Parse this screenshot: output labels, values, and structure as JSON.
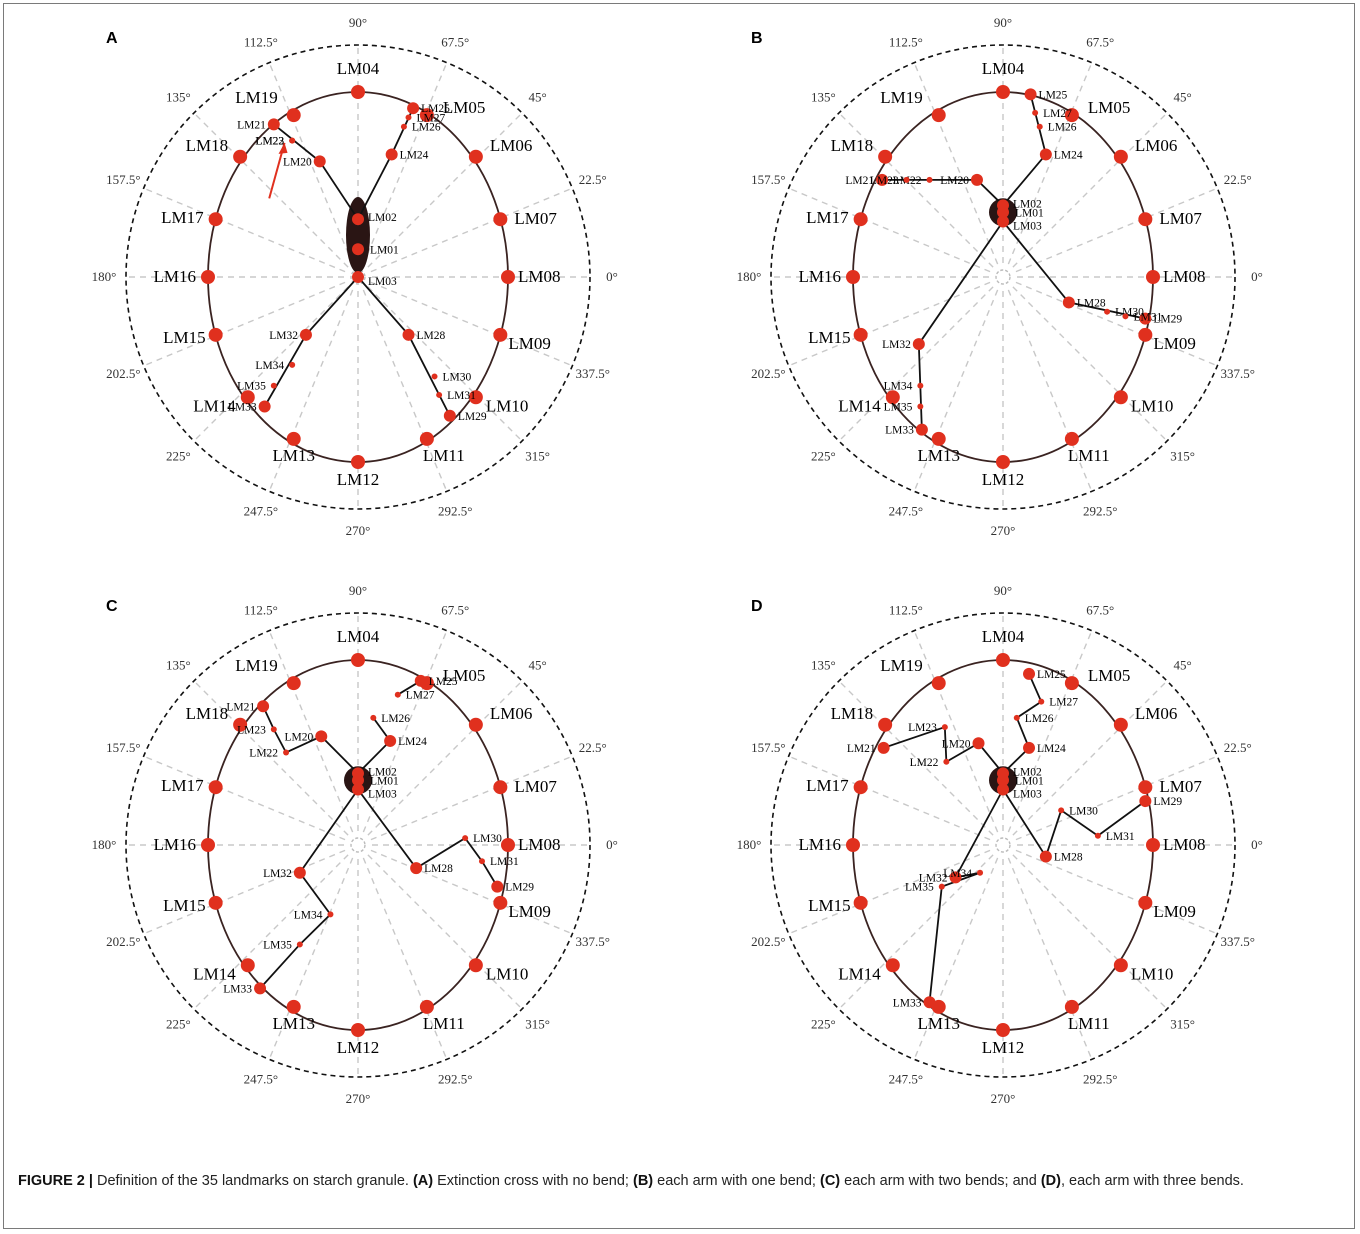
{
  "angle_labels": [
    "0°",
    "22.5°",
    "45°",
    "67.5°",
    "90°",
    "112.5°",
    "135°",
    "157.5°",
    "180°",
    "202.5°",
    "225°",
    "247.5°",
    "270°",
    "292.5°",
    "315°",
    "337.5°"
  ],
  "panels": [
    {
      "letter": "A",
      "lm": {
        "LM01": [
          0,
          0.12
        ],
        "LM02": [
          0,
          0.25
        ],
        "LM03": [
          0,
          0.0
        ],
        "LM04": [
          0,
          0.8
        ],
        "LM05": [
          0.45,
          0.7
        ],
        "LM06": [
          0.77,
          0.52
        ],
        "LM07": [
          0.93,
          0.25
        ],
        "LM08": [
          0.98,
          0.0
        ],
        "LM09": [
          0.93,
          -0.25
        ],
        "LM10": [
          0.77,
          -0.52
        ],
        "LM11": [
          0.45,
          -0.7
        ],
        "LM12": [
          0,
          -0.8
        ],
        "LM13": [
          -0.42,
          -0.7
        ],
        "LM14": [
          -0.72,
          -0.52
        ],
        "LM15": [
          -0.93,
          -0.25
        ],
        "LM16": [
          -0.98,
          0.0
        ],
        "LM17": [
          -0.93,
          0.25
        ],
        "LM18": [
          -0.77,
          0.52
        ],
        "LM19": [
          -0.42,
          0.7
        ],
        "LM20": [
          -0.25,
          0.5
        ],
        "LM21": [
          -0.55,
          0.66
        ],
        "LM22": [
          -0.43,
          0.59
        ],
        "LM23": [
          -0.43,
          0.59
        ],
        "LM24": [
          0.22,
          0.53
        ],
        "LM25": [
          0.36,
          0.73
        ],
        "LM26": [
          0.3,
          0.65
        ],
        "LM27": [
          0.33,
          0.69
        ],
        "LM28": [
          0.33,
          -0.25
        ],
        "LM29": [
          0.6,
          -0.6
        ],
        "LM30": [
          0.5,
          -0.43
        ],
        "LM31": [
          0.53,
          -0.51
        ],
        "LM32": [
          -0.34,
          -0.25
        ],
        "LM33": [
          -0.61,
          -0.56
        ],
        "LM34": [
          -0.43,
          -0.38
        ],
        "LM35": [
          -0.55,
          -0.47
        ]
      },
      "big_lm": [
        "LM04",
        "LM05",
        "LM06",
        "LM07",
        "LM08",
        "LM09",
        "LM10",
        "LM11",
        "LM12",
        "LM13",
        "LM14",
        "LM15",
        "LM16",
        "LM17",
        "LM18",
        "LM19"
      ],
      "paths": [
        [
          "LM02",
          "LM24",
          "LM25"
        ],
        [
          "LM02",
          "LM20",
          "LM21"
        ],
        [
          "LM03",
          "LM32",
          "LM33"
        ],
        [
          "LM03",
          "LM28",
          "LM29"
        ]
      ],
      "red_arrow": true,
      "center_ellipse": true
    },
    {
      "letter": "B",
      "lm": {
        "LM01": [
          0,
          0.28
        ],
        "LM02": [
          0,
          0.31
        ],
        "LM03": [
          0,
          0.24
        ],
        "LM04": [
          0,
          0.8
        ],
        "LM05": [
          0.45,
          0.7
        ],
        "LM06": [
          0.77,
          0.52
        ],
        "LM07": [
          0.93,
          0.25
        ],
        "LM08": [
          0.98,
          0.0
        ],
        "LM09": [
          0.93,
          -0.25
        ],
        "LM10": [
          0.77,
          -0.52
        ],
        "LM11": [
          0.45,
          -0.7
        ],
        "LM12": [
          0,
          -0.8
        ],
        "LM13": [
          -0.42,
          -0.7
        ],
        "LM14": [
          -0.72,
          -0.52
        ],
        "LM15": [
          -0.93,
          -0.25
        ],
        "LM16": [
          -0.98,
          0.0
        ],
        "LM17": [
          -0.93,
          0.25
        ],
        "LM18": [
          -0.77,
          0.52
        ],
        "LM19": [
          -0.42,
          0.7
        ],
        "LM20": [
          -0.17,
          0.42
        ],
        "LM21": [
          -0.79,
          0.42
        ],
        "LM22": [
          -0.48,
          0.42
        ],
        "LM23": [
          -0.63,
          0.42
        ],
        "LM24": [
          0.28,
          0.53
        ],
        "LM25": [
          0.18,
          0.79
        ],
        "LM26": [
          0.24,
          0.65
        ],
        "LM27": [
          0.21,
          0.71
        ],
        "LM28": [
          0.43,
          -0.11
        ],
        "LM29": [
          0.93,
          -0.18
        ],
        "LM30": [
          0.68,
          -0.15
        ],
        "LM31": [
          0.8,
          -0.17
        ],
        "LM32": [
          -0.55,
          -0.29
        ],
        "LM33": [
          -0.53,
          -0.66
        ],
        "LM34": [
          -0.54,
          -0.47
        ],
        "LM35": [
          -0.54,
          -0.56
        ]
      },
      "big_lm": [
        "LM04",
        "LM05",
        "LM06",
        "LM07",
        "LM08",
        "LM09",
        "LM10",
        "LM11",
        "LM12",
        "LM13",
        "LM14",
        "LM15",
        "LM16",
        "LM17",
        "LM18",
        "LM19"
      ],
      "paths": [
        [
          "LM02",
          "LM24",
          "LM25"
        ],
        [
          "LM02",
          "LM20",
          "LM21"
        ],
        [
          "LM03",
          "LM32",
          "LM33"
        ],
        [
          "LM03",
          "LM28",
          "LM29"
        ]
      ],
      "red_arrow": false,
      "center_ellipse": false
    },
    {
      "letter": "C",
      "lm": {
        "LM01": [
          0,
          0.28
        ],
        "LM02": [
          0,
          0.31
        ],
        "LM03": [
          0,
          0.24
        ],
        "LM04": [
          0,
          0.8
        ],
        "LM05": [
          0.45,
          0.7
        ],
        "LM06": [
          0.77,
          0.52
        ],
        "LM07": [
          0.93,
          0.25
        ],
        "LM08": [
          0.98,
          0.0
        ],
        "LM09": [
          0.93,
          -0.25
        ],
        "LM10": [
          0.77,
          -0.52
        ],
        "LM11": [
          0.45,
          -0.7
        ],
        "LM12": [
          0,
          -0.8
        ],
        "LM13": [
          -0.42,
          -0.7
        ],
        "LM14": [
          -0.72,
          -0.52
        ],
        "LM15": [
          -0.93,
          -0.25
        ],
        "LM16": [
          -0.98,
          0.0
        ],
        "LM17": [
          -0.93,
          0.25
        ],
        "LM18": [
          -0.77,
          0.52
        ],
        "LM19": [
          -0.42,
          0.7
        ],
        "LM20": [
          -0.24,
          0.47
        ],
        "LM21": [
          -0.62,
          0.6
        ],
        "LM22": [
          -0.47,
          0.4
        ],
        "LM23": [
          -0.55,
          0.5
        ],
        "LM24": [
          0.21,
          0.45
        ],
        "LM25": [
          0.41,
          0.71
        ],
        "LM26": [
          0.1,
          0.55
        ],
        "LM27": [
          0.26,
          0.65
        ],
        "LM28": [
          0.38,
          -0.1
        ],
        "LM29": [
          0.91,
          -0.18
        ],
        "LM30": [
          0.7,
          0.03
        ],
        "LM31": [
          0.81,
          -0.07
        ],
        "LM32": [
          -0.38,
          -0.12
        ],
        "LM33": [
          -0.64,
          -0.62
        ],
        "LM34": [
          -0.18,
          -0.3
        ],
        "LM35": [
          -0.38,
          -0.43
        ]
      },
      "big_lm": [
        "LM04",
        "LM05",
        "LM06",
        "LM07",
        "LM08",
        "LM09",
        "LM10",
        "LM11",
        "LM12",
        "LM13",
        "LM14",
        "LM15",
        "LM16",
        "LM17",
        "LM18",
        "LM19"
      ],
      "paths": [
        [
          "LM02",
          "LM24",
          "LM26"
        ],
        [
          "LM02",
          "LM20",
          "LM22",
          "LM23",
          "LM21"
        ],
        [
          "LM03",
          "LM32",
          "LM34",
          "LM35",
          "LM33"
        ],
        [
          "LM03",
          "LM28",
          "LM30",
          "LM31",
          "LM29"
        ],
        [
          "LM25",
          "LM27"
        ]
      ],
      "red_arrow": false,
      "center_ellipse": false
    },
    {
      "letter": "D",
      "lm": {
        "LM01": [
          0,
          0.28
        ],
        "LM02": [
          0,
          0.31
        ],
        "LM03": [
          0,
          0.24
        ],
        "LM04": [
          0,
          0.8
        ],
        "LM05": [
          0.45,
          0.7
        ],
        "LM06": [
          0.77,
          0.52
        ],
        "LM07": [
          0.93,
          0.25
        ],
        "LM08": [
          0.98,
          0.0
        ],
        "LM09": [
          0.93,
          -0.25
        ],
        "LM10": [
          0.77,
          -0.52
        ],
        "LM11": [
          0.45,
          -0.7
        ],
        "LM12": [
          0,
          -0.8
        ],
        "LM13": [
          -0.42,
          -0.7
        ],
        "LM14": [
          -0.72,
          -0.52
        ],
        "LM15": [
          -0.93,
          -0.25
        ],
        "LM16": [
          -0.98,
          0.0
        ],
        "LM17": [
          -0.93,
          0.25
        ],
        "LM18": [
          -0.77,
          0.52
        ],
        "LM19": [
          -0.42,
          0.7
        ],
        "LM20": [
          -0.16,
          0.44
        ],
        "LM21": [
          -0.78,
          0.42
        ],
        "LM22": [
          -0.37,
          0.36
        ],
        "LM23": [
          -0.38,
          0.51
        ],
        "LM24": [
          0.17,
          0.42
        ],
        "LM25": [
          0.17,
          0.74
        ],
        "LM26": [
          0.09,
          0.55
        ],
        "LM27": [
          0.25,
          0.62
        ],
        "LM28": [
          0.28,
          -0.05
        ],
        "LM29": [
          0.93,
          0.19
        ],
        "LM30": [
          0.38,
          0.15
        ],
        "LM31": [
          0.62,
          0.04
        ],
        "LM32": [
          -0.31,
          -0.14
        ],
        "LM33": [
          -0.48,
          -0.68
        ],
        "LM34": [
          -0.15,
          -0.12
        ],
        "LM35": [
          -0.4,
          -0.18
        ]
      },
      "big_lm": [
        "LM04",
        "LM05",
        "LM06",
        "LM07",
        "LM08",
        "LM09",
        "LM10",
        "LM11",
        "LM12",
        "LM13",
        "LM14",
        "LM15",
        "LM16",
        "LM17",
        "LM18",
        "LM19"
      ],
      "paths": [
        [
          "LM02",
          "LM24",
          "LM26",
          "LM27",
          "LM25"
        ],
        [
          "LM02",
          "LM20",
          "LM22",
          "LM23",
          "LM21"
        ],
        [
          "LM03",
          "LM32",
          "LM34",
          "LM35",
          "LM33"
        ],
        [
          "LM03",
          "LM28",
          "LM30",
          "LM31",
          "LM29"
        ]
      ],
      "red_arrow": false,
      "center_ellipse": false
    }
  ],
  "caption": {
    "label": "FIGURE 2 |",
    "text": " Definition of the 35 landmarks on starch granule. ",
    "a": "(A)",
    "a_text": " Extinction cross with no bend; ",
    "b": "(B)",
    "b_text": " each arm with one bend; ",
    "c": "(C)",
    "c_text": " each arm with two bends; and ",
    "d": "(D)",
    "d_text": ", each arm with three bends."
  }
}
